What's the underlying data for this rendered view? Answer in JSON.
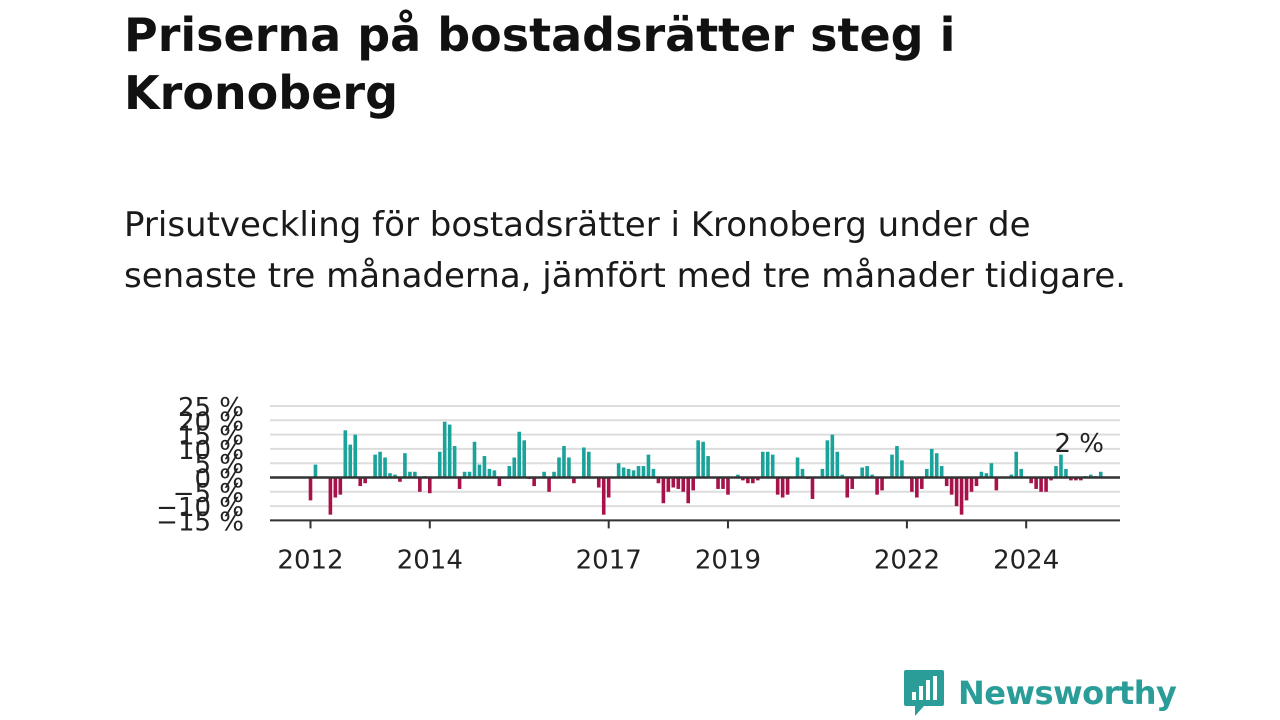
{
  "title": "Priserna på bostadsrätter steg i Kronoberg",
  "subtitle": "Prisutveckling för bostadsrätter i Kronoberg under de senaste tre månaderna, jämfört med tre månader tidigare.",
  "logo": {
    "text": "Newsworthy",
    "icon": "newsworthy-logo-icon"
  },
  "colors": {
    "positive": "#1aa39a",
    "negative": "#a8124a",
    "axis": "#333333",
    "grid": "#dddddd",
    "brand": "#2a9d99"
  },
  "chart_data": {
    "type": "bar",
    "ylabel": "",
    "xlabel": "",
    "ylim": [
      -15,
      25
    ],
    "yticks": [
      -15,
      -10,
      -5,
      0,
      5,
      10,
      15,
      20,
      25
    ],
    "ytick_labels": [
      "−15 %",
      "−10 %",
      "−5 %",
      "0 %",
      "5 %",
      "10 %",
      "15 %",
      "20 %",
      "25 %"
    ],
    "xticks": [
      2012,
      2014,
      2017,
      2019,
      2022,
      2024
    ],
    "x_start": 2012.0,
    "x_step": 0.08333,
    "grid": true,
    "annotation": {
      "label": "2 %",
      "value": 2
    },
    "values": [
      -8,
      4.5,
      0,
      0,
      -13,
      -7,
      -6,
      16.5,
      11.5,
      15,
      -3,
      -2,
      0,
      8,
      9,
      7,
      1.5,
      1,
      -1.5,
      8.5,
      2,
      2,
      -5,
      0.5,
      -5.5,
      0,
      9,
      19.5,
      18.5,
      11,
      -4,
      2,
      2,
      12.5,
      4.5,
      7.5,
      3,
      2.5,
      -3,
      0,
      4,
      7,
      16,
      13,
      -0.5,
      -3,
      0,
      2,
      -5,
      2,
      7,
      11,
      7,
      -2,
      0,
      10.5,
      9,
      0,
      -3.5,
      -13,
      -7,
      0,
      5,
      3.5,
      3,
      2.5,
      4,
      4,
      8,
      3,
      -2,
      -9,
      -5,
      -3.5,
      -4,
      -5,
      -9,
      -4.5,
      13,
      12.5,
      7.5,
      0,
      -4,
      -4,
      -6,
      0,
      1,
      -1,
      -2,
      -2,
      -1,
      9,
      9,
      8,
      -6,
      -7,
      -6,
      0,
      7,
      3,
      -0.5,
      -7.5,
      0,
      3,
      13,
      15,
      9,
      1,
      -7,
      -4,
      0,
      3.5,
      4,
      1,
      -6,
      -4.5,
      0,
      8,
      11,
      6,
      0,
      -5,
      -7,
      -4,
      3,
      10,
      8.5,
      4,
      -3,
      -6,
      -10,
      -13,
      -8,
      -5,
      -3,
      2,
      1.5,
      5,
      -4.5,
      0,
      0,
      1,
      9,
      3,
      0,
      -2,
      -4,
      -5,
      -5,
      -1,
      4,
      8,
      3,
      -1,
      -1,
      -1,
      0.5,
      1,
      0.5,
      2
    ]
  }
}
